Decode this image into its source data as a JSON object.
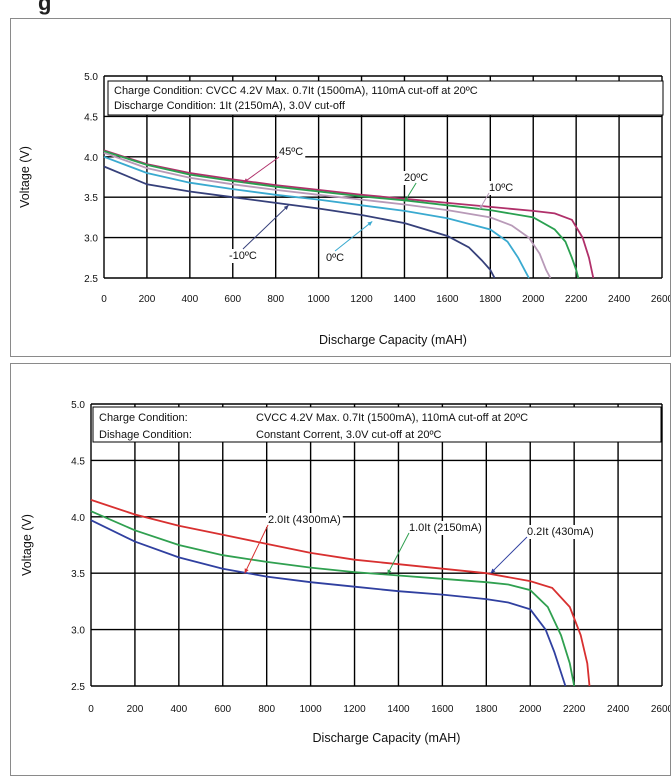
{
  "header_fragment": "g",
  "chart_data": [
    {
      "type": "line",
      "title": "",
      "xlabel": "Discharge Capacity (mAH)",
      "ylabel": "Voltage (V)",
      "xlim": [
        0,
        2600
      ],
      "ylim": [
        2.5,
        5.0
      ],
      "xticks": [
        "0",
        "200",
        "400",
        "600",
        "800",
        "1000",
        "1200",
        "1400",
        "1600",
        "1800",
        "2000",
        "2200",
        "2400",
        "2600"
      ],
      "yticks": [
        "2.5",
        "3.0",
        "3.5",
        "4.0",
        "4.5",
        "5.0"
      ],
      "grid": true,
      "notes": [
        "Charge Condition: CVCC 4.2V Max. 0.7It (1500mA), 110mA cut-off at 20ºC",
        "Discharge Condition: 1It (2150mA), 3.0V cut-off"
      ],
      "series": [
        {
          "name": "45ºC",
          "color": "#b0306a",
          "x": [
            0,
            200,
            400,
            600,
            800,
            1000,
            1200,
            1400,
            1600,
            1800,
            2000,
            2100,
            2180,
            2230,
            2260,
            2280
          ],
          "y": [
            4.08,
            3.91,
            3.8,
            3.72,
            3.65,
            3.59,
            3.53,
            3.48,
            3.43,
            3.38,
            3.33,
            3.3,
            3.22,
            3.0,
            2.75,
            2.5
          ]
        },
        {
          "name": "20ºC",
          "color": "#2aa050",
          "x": [
            0,
            200,
            400,
            600,
            800,
            1000,
            1200,
            1400,
            1600,
            1800,
            2000,
            2100,
            2150,
            2180,
            2200,
            2210
          ],
          "y": [
            4.07,
            3.9,
            3.78,
            3.7,
            3.63,
            3.57,
            3.51,
            3.46,
            3.4,
            3.34,
            3.25,
            3.1,
            2.95,
            2.75,
            2.6,
            2.5
          ]
        },
        {
          "name": "10ºC",
          "color": "#b89ab8",
          "x": [
            0,
            200,
            400,
            600,
            800,
            1000,
            1200,
            1400,
            1600,
            1800,
            1900,
            1980,
            2030,
            2060,
            2080
          ],
          "y": [
            4.05,
            3.86,
            3.74,
            3.66,
            3.59,
            3.53,
            3.47,
            3.41,
            3.34,
            3.25,
            3.15,
            3.0,
            2.8,
            2.6,
            2.5
          ]
        },
        {
          "name": "0ºC",
          "color": "#3aaad0",
          "x": [
            0,
            200,
            400,
            600,
            800,
            1000,
            1200,
            1400,
            1600,
            1800,
            1880,
            1930,
            1960,
            1980
          ],
          "y": [
            4.0,
            3.8,
            3.68,
            3.6,
            3.53,
            3.47,
            3.4,
            3.33,
            3.24,
            3.1,
            2.95,
            2.75,
            2.6,
            2.5
          ]
        },
        {
          "name": "-10ºC",
          "color": "#36407a",
          "x": [
            0,
            200,
            400,
            600,
            800,
            1000,
            1200,
            1400,
            1600,
            1700,
            1760,
            1800,
            1820
          ],
          "y": [
            3.88,
            3.66,
            3.57,
            3.5,
            3.43,
            3.36,
            3.28,
            3.18,
            3.02,
            2.88,
            2.72,
            2.6,
            2.5
          ]
        }
      ],
      "annotations": [
        "45ºC",
        "20ºC",
        "10ºC",
        "0ºC",
        "-10ºC"
      ]
    },
    {
      "type": "line",
      "title": "",
      "xlabel": "Discharge Capacity (mAH)",
      "ylabel": "Voltage (V)",
      "xlim": [
        0,
        2600
      ],
      "ylim": [
        2.5,
        5.0
      ],
      "xticks": [
        "0",
        "200",
        "400",
        "600",
        "800",
        "1000",
        "1200",
        "1400",
        "1600",
        "1800",
        "2000",
        "2200",
        "2400",
        "2600"
      ],
      "yticks": [
        "2.5",
        "3.0",
        "3.5",
        "4.0",
        "4.5",
        "5.0"
      ],
      "grid": true,
      "notes": [
        "Charge Condition:",
        "CVCC 4.2V Max. 0.7It (1500mA), 110mA cut-off at 20ºC",
        "Dishage Condition:",
        "Constant Corrent, 3.0V cut-off at 20ºC"
      ],
      "series": [
        {
          "name": "0.2It (430mA)",
          "color": "#d83030",
          "x": [
            0,
            200,
            400,
            600,
            800,
            1000,
            1200,
            1400,
            1600,
            1800,
            2000,
            2100,
            2180,
            2230,
            2260,
            2270
          ],
          "y": [
            4.15,
            4.02,
            3.92,
            3.84,
            3.76,
            3.68,
            3.62,
            3.58,
            3.54,
            3.5,
            3.43,
            3.37,
            3.2,
            2.95,
            2.7,
            2.5
          ]
        },
        {
          "name": "1.0It (2150mA)",
          "color": "#30a050",
          "x": [
            0,
            200,
            400,
            600,
            800,
            1000,
            1200,
            1400,
            1600,
            1800,
            1900,
            2000,
            2080,
            2140,
            2180,
            2200
          ],
          "y": [
            4.05,
            3.88,
            3.75,
            3.66,
            3.6,
            3.55,
            3.51,
            3.48,
            3.45,
            3.42,
            3.4,
            3.35,
            3.2,
            2.95,
            2.7,
            2.5
          ]
        },
        {
          "name": "2.0It (4300mA)",
          "color": "#3040a0",
          "x": [
            0,
            200,
            400,
            600,
            800,
            1000,
            1200,
            1400,
            1600,
            1800,
            1900,
            2000,
            2070,
            2110,
            2140,
            2160
          ],
          "y": [
            3.97,
            3.78,
            3.64,
            3.54,
            3.47,
            3.42,
            3.38,
            3.34,
            3.31,
            3.27,
            3.24,
            3.18,
            3.0,
            2.8,
            2.62,
            2.5
          ]
        }
      ],
      "annotations": [
        "2.0It (4300mA)",
        "1.0It (2150mA)",
        "0.2It (430mA)"
      ]
    }
  ]
}
